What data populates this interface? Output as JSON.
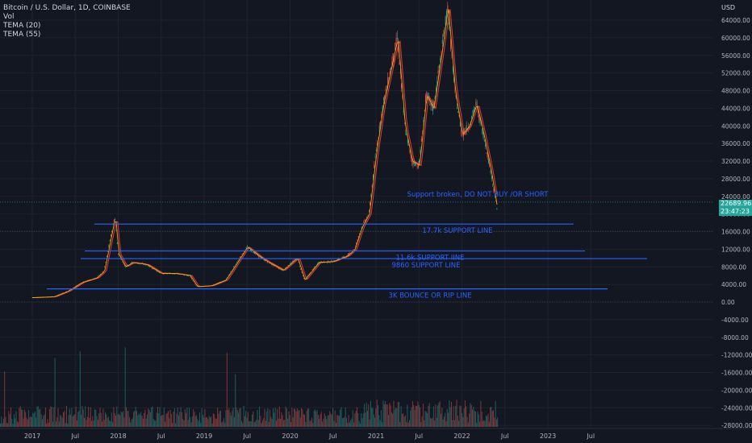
{
  "legend": {
    "symbol": "Bitcoin / U.S. Dollar, 1D, COINBASE",
    "vol": "Vol",
    "tema20": "TEMA (20)",
    "tema55": "TEMA (55)"
  },
  "price_tag": {
    "price": "22689.96",
    "countdown": "23:47:23"
  },
  "currency": "USD",
  "colors": {
    "background": "#131722",
    "grid": "#1e222d",
    "up": "#26a69a",
    "down": "#ef5350",
    "annotation": "#2962ff",
    "axis_text": "#b2b5be"
  },
  "chart_data": {
    "type": "line",
    "title": "Bitcoin / U.S. Dollar, 1D, COINBASE",
    "x_ticks": [
      "2017",
      "Jul",
      "2018",
      "Jul",
      "2019",
      "Jul",
      "2020",
      "Jul",
      "2021",
      "Jul",
      "2022",
      "Jul",
      "2023",
      "Jul"
    ],
    "y_ticks": [
      "64000.00",
      "60000.00",
      "56000.00",
      "52000.00",
      "48000.00",
      "44000.00",
      "40000.00",
      "36000.00",
      "32000.00",
      "28000.00",
      "24000.00",
      "20000.00",
      "16000.00",
      "12000.00",
      "8000.00",
      "4000.00",
      "0.00",
      "-4000.00",
      "-8000.00",
      "-12000.00",
      "-16000.00",
      "-20000.00",
      "-24000.00",
      "-28000.00"
    ],
    "ylim": [
      -28000,
      66000
    ],
    "price_series": {
      "name": "BTCUSD",
      "x": [
        "2017-01",
        "2017-04",
        "2017-06",
        "2017-08",
        "2017-10",
        "2017-11",
        "2017-12-17",
        "2018-01",
        "2018-02",
        "2018-03",
        "2018-05",
        "2018-07",
        "2018-09",
        "2018-11",
        "2018-12",
        "2019-02",
        "2019-04",
        "2019-06",
        "2019-07",
        "2019-09",
        "2019-10",
        "2019-12",
        "2020-02",
        "2020-03",
        "2020-05",
        "2020-07",
        "2020-09",
        "2020-10",
        "2020-11",
        "2020-12",
        "2021-01",
        "2021-02",
        "2021-04",
        "2021-05",
        "2021-06",
        "2021-07",
        "2021-08",
        "2021-09",
        "2021-10",
        "2021-11",
        "2021-12",
        "2022-01",
        "2022-02",
        "2022-03",
        "2022-04",
        "2022-05",
        "2022-06"
      ],
      "values": [
        1000,
        1200,
        2500,
        4500,
        5500,
        7000,
        19500,
        11000,
        8000,
        9000,
        8500,
        6500,
        6500,
        6000,
        3500,
        3700,
        5000,
        10000,
        12500,
        10000,
        9000,
        7200,
        10000,
        5000,
        9000,
        9200,
        10500,
        12000,
        17000,
        20000,
        34000,
        45000,
        60000,
        40000,
        32000,
        31000,
        47000,
        44000,
        55000,
        67000,
        48000,
        38000,
        40000,
        45000,
        38000,
        30000,
        20000
      ]
    },
    "support_lines": [
      {
        "label": "17.7k SUPPORT LINE",
        "value": 17700
      },
      {
        "label": "11.6k SUPPORT IINE",
        "value": 11600
      },
      {
        "label": "9860 SUPPORT LINE",
        "value": 9860
      },
      {
        "label": "3K BOUNCE OR  RIP LINE",
        "value": 3000
      }
    ],
    "annotation": {
      "label": "Support broken, DO NOT BUY /OR SHORT"
    },
    "current_price": 22689.96
  }
}
